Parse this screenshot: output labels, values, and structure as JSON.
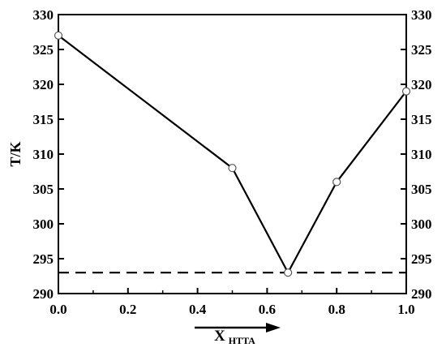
{
  "chart_data": {
    "type": "line",
    "ylabel": "T/K",
    "xlabel_main": "X",
    "xlabel_sub": "HTTA",
    "xlim": [
      0.0,
      1.0
    ],
    "ylim": [
      290,
      330
    ],
    "x_ticks": [
      0.0,
      0.2,
      0.4,
      0.6,
      0.8,
      1.0
    ],
    "x_tick_labels": [
      "0.0",
      "0.2",
      "0.4",
      "0.6",
      "0.8",
      "1.0"
    ],
    "y_ticks": [
      290,
      295,
      300,
      305,
      310,
      315,
      320,
      325,
      330
    ],
    "y_tick_labels": [
      "290",
      "295",
      "300",
      "305",
      "310",
      "315",
      "320",
      "325",
      "330"
    ],
    "grid": false,
    "series": [
      {
        "x": [
          0.0,
          0.5,
          0.66,
          0.8,
          1.0
        ],
        "y": [
          327,
          308,
          293,
          306,
          319
        ]
      }
    ],
    "reference_line": {
      "y": 293,
      "style": "dashed"
    },
    "arrow_under_xlabel": true,
    "colors": {
      "line": "#000000",
      "marker_fill": "#ffffff"
    }
  }
}
